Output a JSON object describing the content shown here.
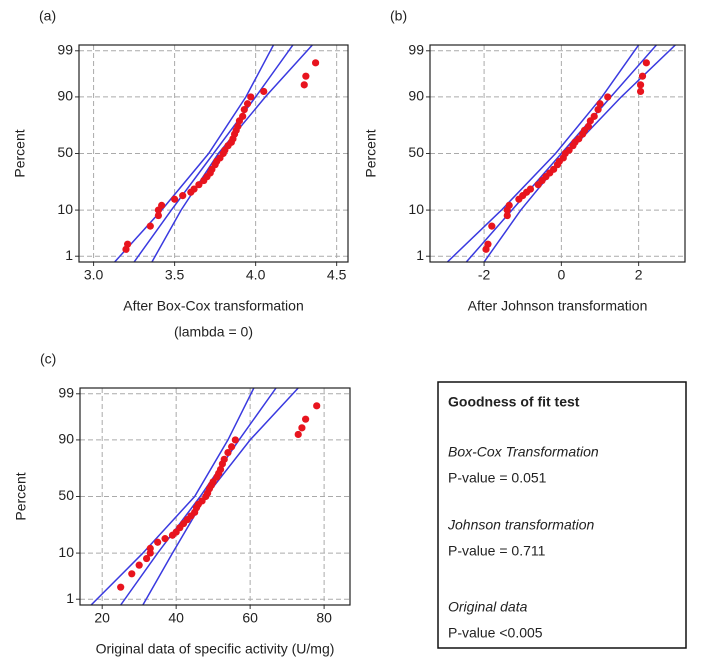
{
  "chart_data": [
    {
      "type": "probability",
      "panel_label": "(a)",
      "ylabel": "Percent",
      "xlabel": [
        "After Box-Cox transformation",
        "(lambda = 0)"
      ],
      "yscale": "normal-probability",
      "grid": true,
      "color": "#e8141e",
      "line_color": "#3a3ae0",
      "xlim": [
        2.91,
        4.57
      ],
      "xticks": [
        {
          "value": 3,
          "label": "3.0"
        },
        3.5,
        {
          "value": 4,
          "label": "4.0"
        },
        4.5
      ],
      "ylim": [
        0.7,
        99.3
      ],
      "yticks": [
        1,
        10,
        50,
        90,
        99
      ],
      "x": [
        3.2,
        3.21,
        3.35,
        3.4,
        3.4,
        3.42,
        3.5,
        3.55,
        3.6,
        3.62,
        3.65,
        3.68,
        3.7,
        3.72,
        3.73,
        3.75,
        3.76,
        3.78,
        3.8,
        3.81,
        3.83,
        3.85,
        3.86,
        3.87,
        3.88,
        3.89,
        3.9,
        3.92,
        3.93,
        3.95,
        3.97,
        4.05,
        4.3,
        4.31,
        4.37
      ],
      "y": [
        1.5,
        2,
        5,
        8,
        10,
        12,
        15,
        17,
        19,
        21,
        24,
        27,
        30,
        33,
        36,
        40,
        43,
        46,
        50,
        53,
        57,
        60,
        63,
        67,
        70,
        73,
        77,
        80,
        84,
        87,
        90,
        92,
        94,
        96,
        98
      ],
      "fit_lines": [
        {
          "x": [
            3.13,
            3.42,
            3.71,
            3.94,
            4.11
          ],
          "y": [
            0.7,
            10,
            50,
            90,
            99.3
          ]
        },
        {
          "x": [
            3.25,
            3.48,
            3.74,
            4.0,
            4.23
          ],
          "y": [
            0.7,
            10,
            50,
            90,
            99.3
          ]
        },
        {
          "x": [
            3.36,
            3.54,
            3.77,
            4.06,
            4.35
          ],
          "y": [
            0.7,
            10,
            50,
            90,
            99.3
          ]
        }
      ]
    },
    {
      "type": "probability",
      "panel_label": "(b)",
      "ylabel": "Percent",
      "xlabel": [
        "After Johnson transformation"
      ],
      "yscale": "normal-probability",
      "grid": true,
      "color": "#e8141e",
      "line_color": "#3a3ae0",
      "xlim": [
        -3.4,
        3.2
      ],
      "xticks": [
        -2,
        0,
        2
      ],
      "ylim": [
        0.7,
        99.3
      ],
      "yticks": [
        1,
        10,
        50,
        90,
        99
      ],
      "x": [
        -1.95,
        -1.9,
        -1.8,
        -1.4,
        -1.4,
        -1.35,
        -1.1,
        -1.0,
        -0.9,
        -0.8,
        -0.6,
        -0.5,
        -0.4,
        -0.3,
        -0.2,
        -0.1,
        -0.05,
        0.05,
        0.1,
        0.2,
        0.3,
        0.35,
        0.45,
        0.55,
        0.6,
        0.7,
        0.75,
        0.85,
        0.95,
        1.0,
        1.2,
        2.05,
        2.05,
        2.1,
        2.2
      ],
      "y": [
        1.5,
        2,
        5,
        8,
        10,
        12,
        15,
        17,
        19,
        21,
        24,
        27,
        30,
        33,
        36,
        40,
        43,
        46,
        50,
        53,
        57,
        60,
        63,
        67,
        70,
        73,
        77,
        80,
        84,
        87,
        90,
        92,
        94,
        96,
        98
      ],
      "fit_lines": [
        {
          "x": [
            -2.95,
            -1.55,
            -0.15,
            1.05,
            2.0
          ],
          "y": [
            0.7,
            10,
            50,
            90,
            99.3
          ]
        },
        {
          "x": [
            -2.46,
            -1.28,
            0,
            1.28,
            2.46
          ],
          "y": [
            0.7,
            10,
            50,
            90,
            99.3
          ]
        },
        {
          "x": [
            -2.0,
            -1.05,
            0.15,
            1.55,
            2.95
          ],
          "y": [
            0.7,
            10,
            50,
            90,
            99.3
          ]
        }
      ]
    },
    {
      "type": "probability",
      "panel_label": "(c)",
      "ylabel": "Percent",
      "xlabel": [
        "Original data of specific activity (U/mg)"
      ],
      "yscale": "normal-probability",
      "grid": true,
      "color": "#e8141e",
      "line_color": "#3a3ae0",
      "xlim": [
        14,
        87
      ],
      "xticks": [
        20,
        40,
        60,
        80
      ],
      "ylim": [
        0.7,
        99.3
      ],
      "yticks": [
        1,
        10,
        50,
        90,
        99
      ],
      "x": [
        25,
        28,
        30,
        32,
        33,
        33,
        35,
        37,
        39,
        40,
        41,
        42,
        43,
        44,
        45,
        45.5,
        46,
        47,
        48,
        48.5,
        49,
        49.5,
        50,
        51,
        51.5,
        52,
        52.5,
        53,
        54,
        55,
        56,
        73,
        74,
        75,
        78
      ],
      "y": [
        2,
        4,
        6,
        8,
        10,
        12,
        15,
        17,
        19,
        21,
        24,
        27,
        30,
        33,
        36,
        40,
        43,
        46,
        50,
        53,
        57,
        60,
        63,
        67,
        70,
        73,
        77,
        80,
        84,
        87,
        90,
        92,
        94,
        96,
        98
      ],
      "fit_lines": [
        {
          "x": [
            17,
            31,
            45,
            54,
            61
          ],
          "y": [
            0.7,
            10,
            50,
            90,
            99.3
          ]
        },
        {
          "x": [
            25,
            35,
            46.5,
            57,
            67
          ],
          "y": [
            0.7,
            10,
            50,
            90,
            99.3
          ]
        },
        {
          "x": [
            31,
            39,
            48,
            60,
            73
          ],
          "y": [
            0.7,
            10,
            50,
            90,
            99.3
          ]
        }
      ]
    }
  ],
  "goodness_of_fit": {
    "title": "Goodness of fit test",
    "items": [
      {
        "method": "Box-Cox Transformation",
        "result": "P-value = 0.051"
      },
      {
        "method": "Johnson transformation",
        "result": "P-value = 0.711"
      },
      {
        "method": "Original data",
        "result": "P-value <0.005"
      }
    ]
  }
}
